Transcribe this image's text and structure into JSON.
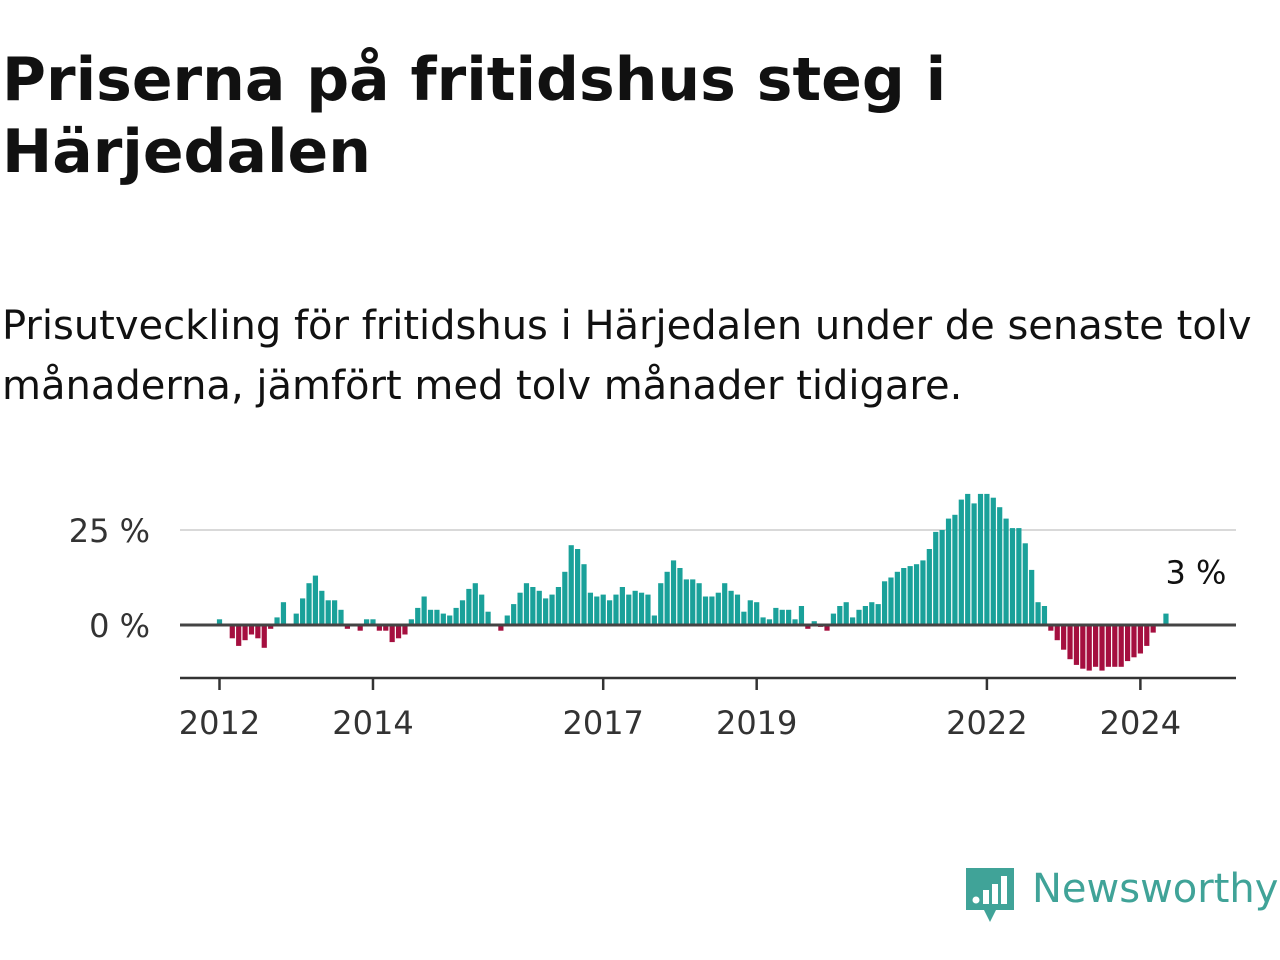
{
  "title": "Priserna på fritidshus steg i Härjedalen",
  "subtitle": "Prisutveckling för fritidshus i Härjedalen under de senaste tolv månaderna, jämfört med tolv månader tidigare.",
  "brand": {
    "name": "Newsworthy",
    "color": "#40a398"
  },
  "colors": {
    "positive": "#1aa19a",
    "negative": "#a50f3f",
    "zero_line": "#444444",
    "grid": "#d9d9d9",
    "axis": "#333333"
  },
  "chart_data": {
    "type": "bar",
    "x_start": "2012-01",
    "x_unit": "month",
    "ylim": [
      -13,
      37
    ],
    "y_ticks": [
      {
        "value": 0,
        "label": "0 %"
      },
      {
        "value": 25,
        "label": "25 %"
      }
    ],
    "x_ticks": [
      {
        "label": "2012",
        "month_index": 0
      },
      {
        "label": "2014",
        "month_index": 24
      },
      {
        "label": "2017",
        "month_index": 60
      },
      {
        "label": "2019",
        "month_index": 84
      },
      {
        "label": "2022",
        "month_index": 120
      },
      {
        "label": "2024",
        "month_index": 144
      }
    ],
    "grid": true,
    "last_value_label": "3 %",
    "values": [
      1.5,
      0,
      -3.5,
      -5.5,
      -4,
      -2.5,
      -3.5,
      -6,
      -1,
      2,
      6,
      0,
      3,
      7,
      11,
      13,
      9,
      6.5,
      6.5,
      4,
      -1,
      0,
      -1.5,
      1.5,
      1.5,
      -1.5,
      -1.5,
      -4.5,
      -3.5,
      -2.5,
      1.5,
      4.5,
      7.5,
      4,
      4,
      3,
      2.5,
      4.5,
      6.5,
      9.5,
      11,
      8,
      3.5,
      0,
      -1.5,
      2.5,
      5.5,
      8.5,
      11,
      10,
      9,
      7,
      8,
      10,
      14,
      21,
      20,
      16,
      8.5,
      7.5,
      8,
      6.5,
      8,
      10,
      8,
      9,
      8.5,
      8,
      2.5,
      11,
      14,
      17,
      15,
      12,
      12,
      11,
      7.5,
      7.5,
      8.5,
      11,
      9,
      8,
      3.5,
      6.5,
      6,
      2,
      1.5,
      4.5,
      4,
      4,
      1.5,
      5,
      -1,
      1,
      -0.5,
      -1.5,
      3,
      5,
      6,
      2,
      4,
      5,
      6,
      5.5,
      11.5,
      12.5,
      14,
      15,
      15.5,
      16,
      17,
      20,
      24.5,
      25,
      28,
      29,
      33,
      34.5,
      32,
      34.5,
      34.5,
      33.5,
      31,
      28,
      25.5,
      25.5,
      21.5,
      14.5,
      6,
      5,
      -1.5,
      -4,
      -6.5,
      -9,
      -10.5,
      -11.5,
      -12,
      -11,
      -12,
      -11,
      -11,
      -11,
      -9.5,
      -8.5,
      -7.5,
      -5.5,
      -2,
      0,
      3
    ]
  }
}
